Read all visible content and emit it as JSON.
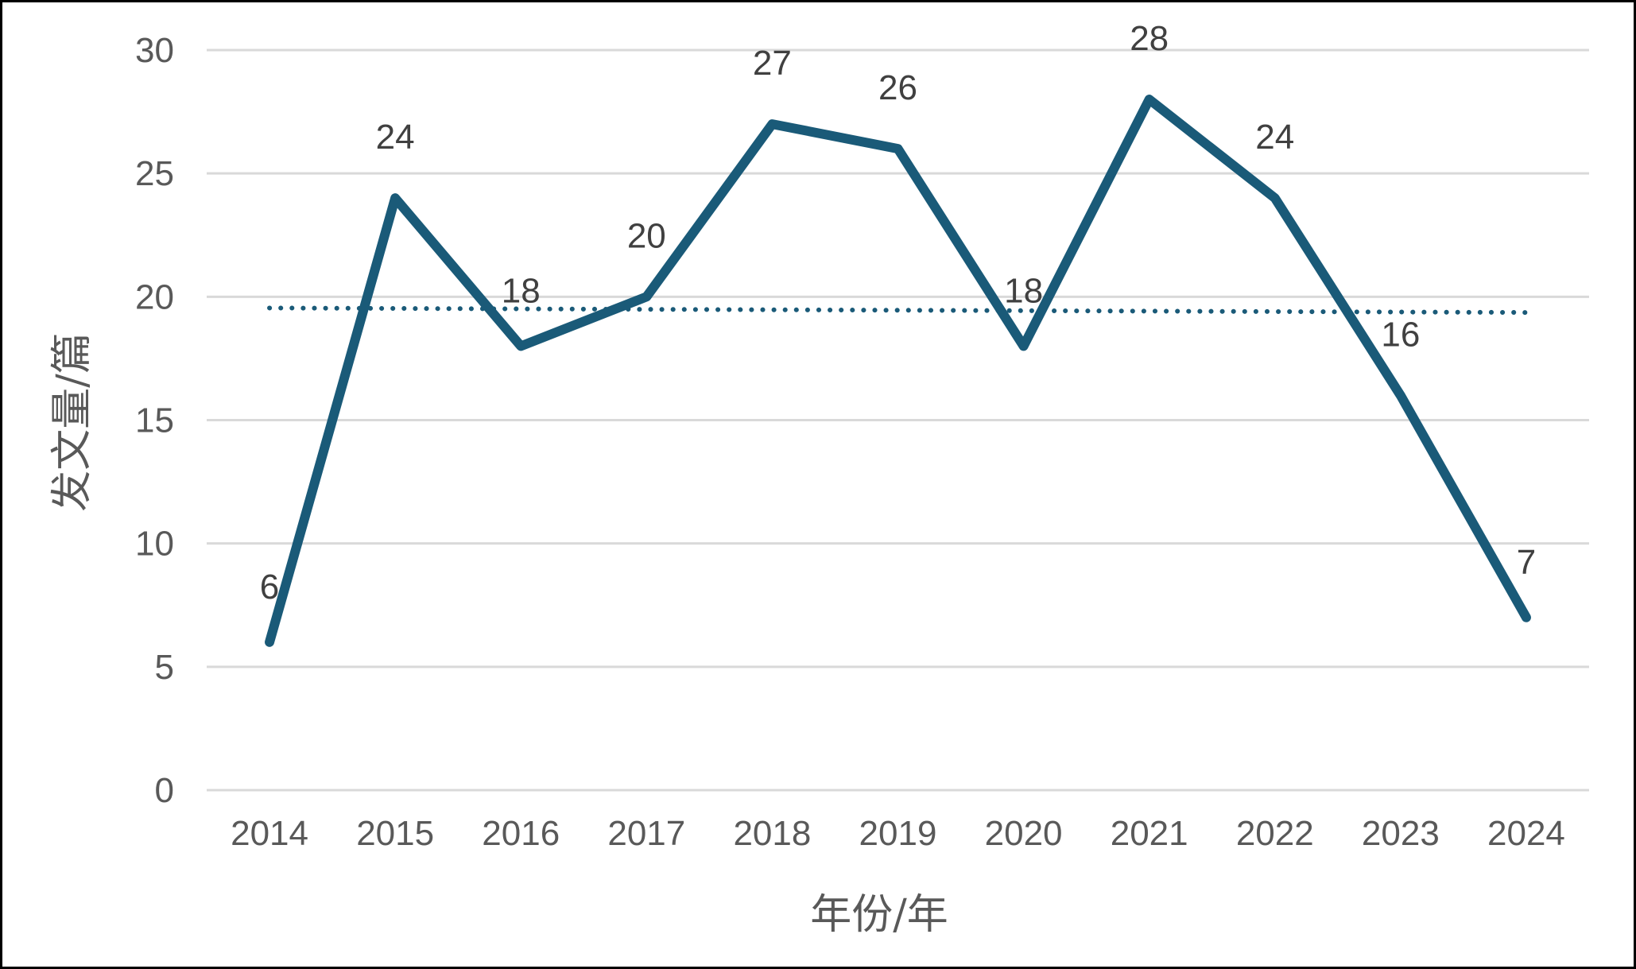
{
  "chart_data": {
    "type": "line",
    "title": "",
    "xlabel": "年份/年",
    "ylabel": "发文量/篇",
    "categories": [
      "2014",
      "2015",
      "2016",
      "2017",
      "2018",
      "2019",
      "2020",
      "2021",
      "2022",
      "2023",
      "2024"
    ],
    "series": [
      {
        "values": [
          6,
          24,
          18,
          20,
          27,
          26,
          18,
          28,
          24,
          16,
          7
        ],
        "color": "#1a5a78",
        "data_labels": true
      }
    ],
    "trendline": {
      "type": "linear",
      "style": "dotted",
      "color": "#1a5a78"
    },
    "ylim": [
      0,
      30
    ],
    "yticks": [
      0,
      5,
      10,
      15,
      20,
      25,
      30
    ],
    "grid": "horizontal",
    "gridColor": "#d9d9d9",
    "legend": "none"
  }
}
